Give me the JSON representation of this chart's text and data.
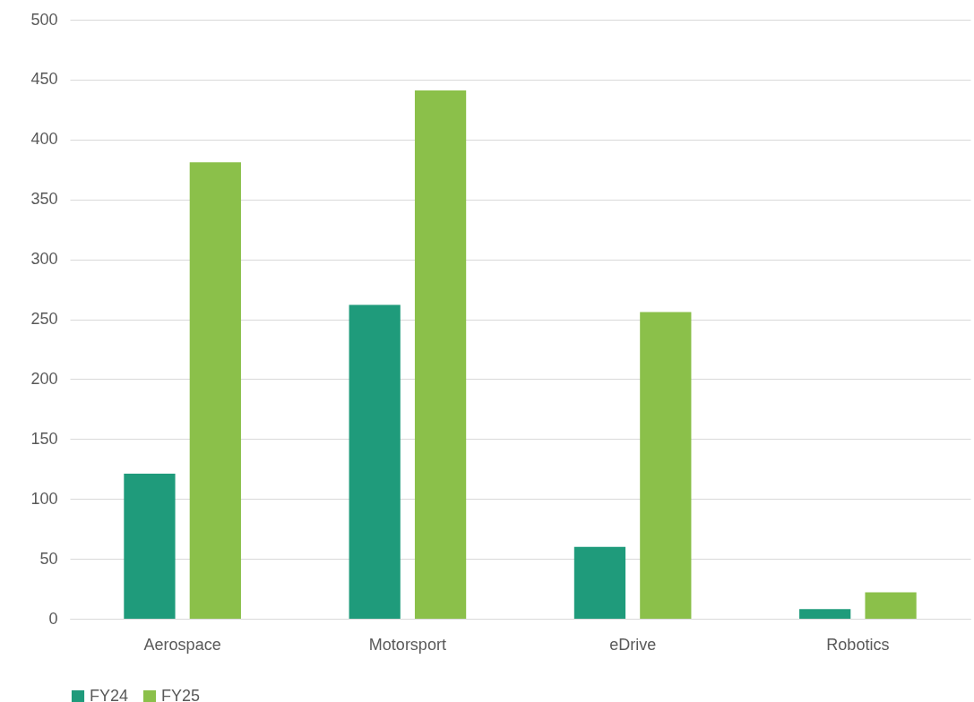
{
  "chart_data": {
    "type": "bar",
    "categories": [
      "Aerospace",
      "Motorsport",
      "eDrive",
      "Robotics"
    ],
    "series": [
      {
        "name": "FY24",
        "color": "#1f9b7b",
        "values": [
          121,
          262,
          60,
          8
        ]
      },
      {
        "name": "FY25",
        "color": "#8bc04a",
        "values": [
          381,
          441,
          256,
          22
        ]
      }
    ],
    "ylim": [
      0,
      500
    ],
    "yticks": [
      0,
      50,
      100,
      150,
      200,
      250,
      300,
      350,
      400,
      450,
      500
    ],
    "grid": "y",
    "legend": "bottom"
  }
}
